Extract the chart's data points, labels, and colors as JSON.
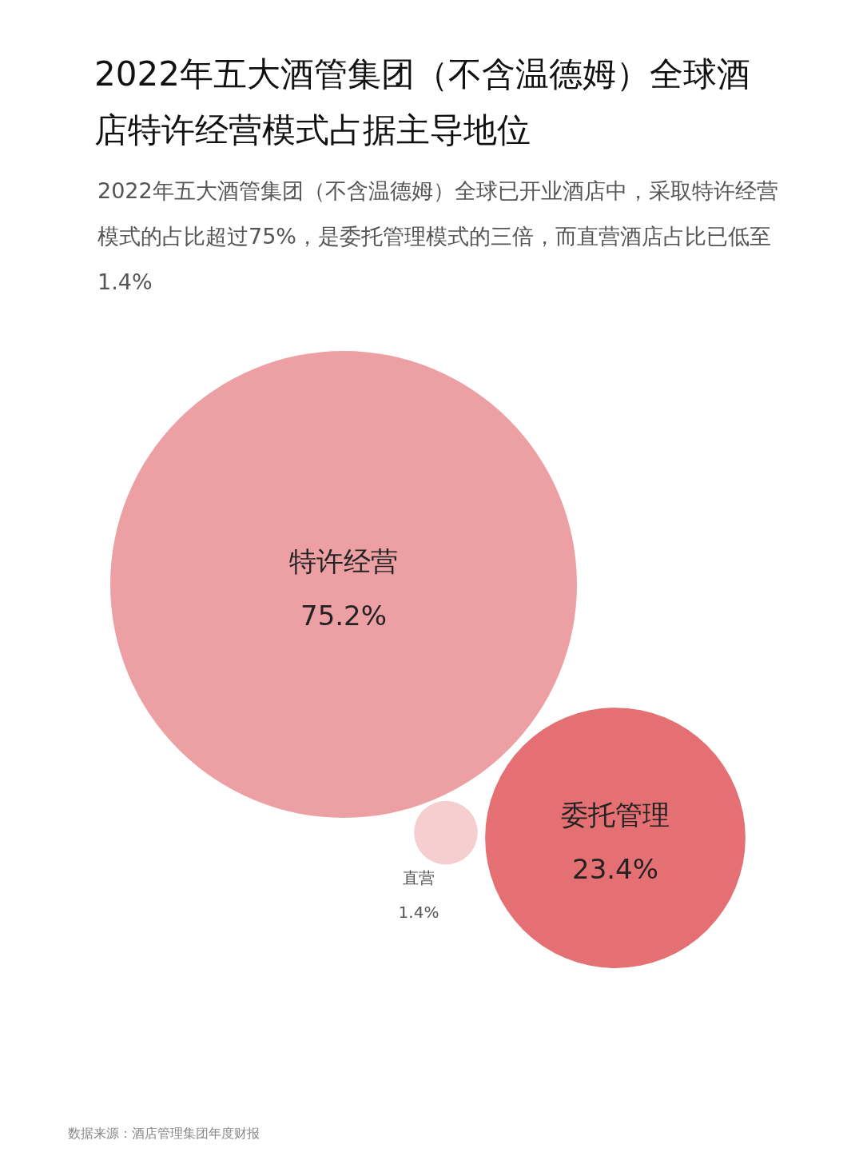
{
  "chart_data": {
    "type": "other",
    "title": "2022年五大酒管集团（不含温德姆）全球酒店特许经营模式占据主导地位",
    "subtitle": "2022年五大酒管集团（不含温德姆）全球已开业酒店中，采取特许经营模式的占比超过75%，是委托管理模式的三倍，而直营酒店占比已低至1.4%",
    "categories": [
      "特许经营",
      "委托管理",
      "直营"
    ],
    "values": [
      75.2,
      23.4,
      1.4
    ],
    "value_labels": [
      "75.2%",
      "23.4%",
      "1.4%"
    ],
    "colors": [
      "#eca0a3",
      "#e57073",
      "#f5cfd0"
    ],
    "annotations": [
      "数据来源：酒店管理集团年度财报"
    ]
  }
}
